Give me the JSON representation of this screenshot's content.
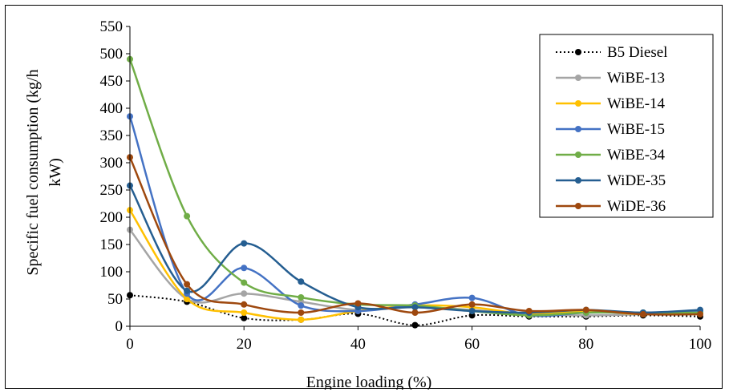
{
  "chart_data": {
    "type": "line",
    "title": "",
    "xlabel": "Engine loading (%)",
    "ylabel_lines": [
      "Specific fuel consumption (kg/h",
      "kW)"
    ],
    "xlim": [
      0,
      100
    ],
    "ylim": [
      0,
      550
    ],
    "x_ticks": [
      0,
      20,
      40,
      60,
      80,
      100
    ],
    "y_ticks": [
      0,
      50,
      100,
      150,
      200,
      250,
      300,
      350,
      400,
      450,
      500,
      550
    ],
    "grid": false,
    "legend_position": "top-right",
    "x": [
      0,
      10,
      20,
      30,
      40,
      50,
      60,
      70,
      80,
      90,
      100
    ],
    "series": [
      {
        "name": "B5 Diesel",
        "color": "#000000",
        "dashed": true,
        "values": [
          57,
          45,
          15,
          12,
          23,
          2,
          20,
          18,
          18,
          20,
          18
        ]
      },
      {
        "name": "WiBE-13",
        "color": "#a5a5a5",
        "dashed": false,
        "values": [
          177,
          50,
          60,
          45,
          30,
          35,
          30,
          22,
          20,
          22,
          25
        ]
      },
      {
        "name": "WiBE-14",
        "color": "#ffc000",
        "dashed": false,
        "values": [
          213,
          50,
          25,
          12,
          28,
          38,
          35,
          22,
          28,
          22,
          25
        ]
      },
      {
        "name": "WiBE-15",
        "color": "#4472c4",
        "dashed": false,
        "values": [
          385,
          60,
          107,
          38,
          28,
          40,
          52,
          20,
          25,
          25,
          28
        ]
      },
      {
        "name": "WiBE-34",
        "color": "#70ad47",
        "dashed": false,
        "values": [
          490,
          202,
          80,
          53,
          40,
          38,
          28,
          20,
          25,
          25,
          25
        ]
      },
      {
        "name": "WiDE-35",
        "color": "#255e91",
        "dashed": false,
        "values": [
          258,
          65,
          152,
          82,
          35,
          35,
          28,
          25,
          30,
          25,
          30
        ]
      },
      {
        "name": "WiDE-36",
        "color": "#9e480e",
        "dashed": false,
        "values": [
          310,
          77,
          40,
          25,
          42,
          25,
          40,
          28,
          30,
          22,
          22
        ]
      }
    ]
  }
}
